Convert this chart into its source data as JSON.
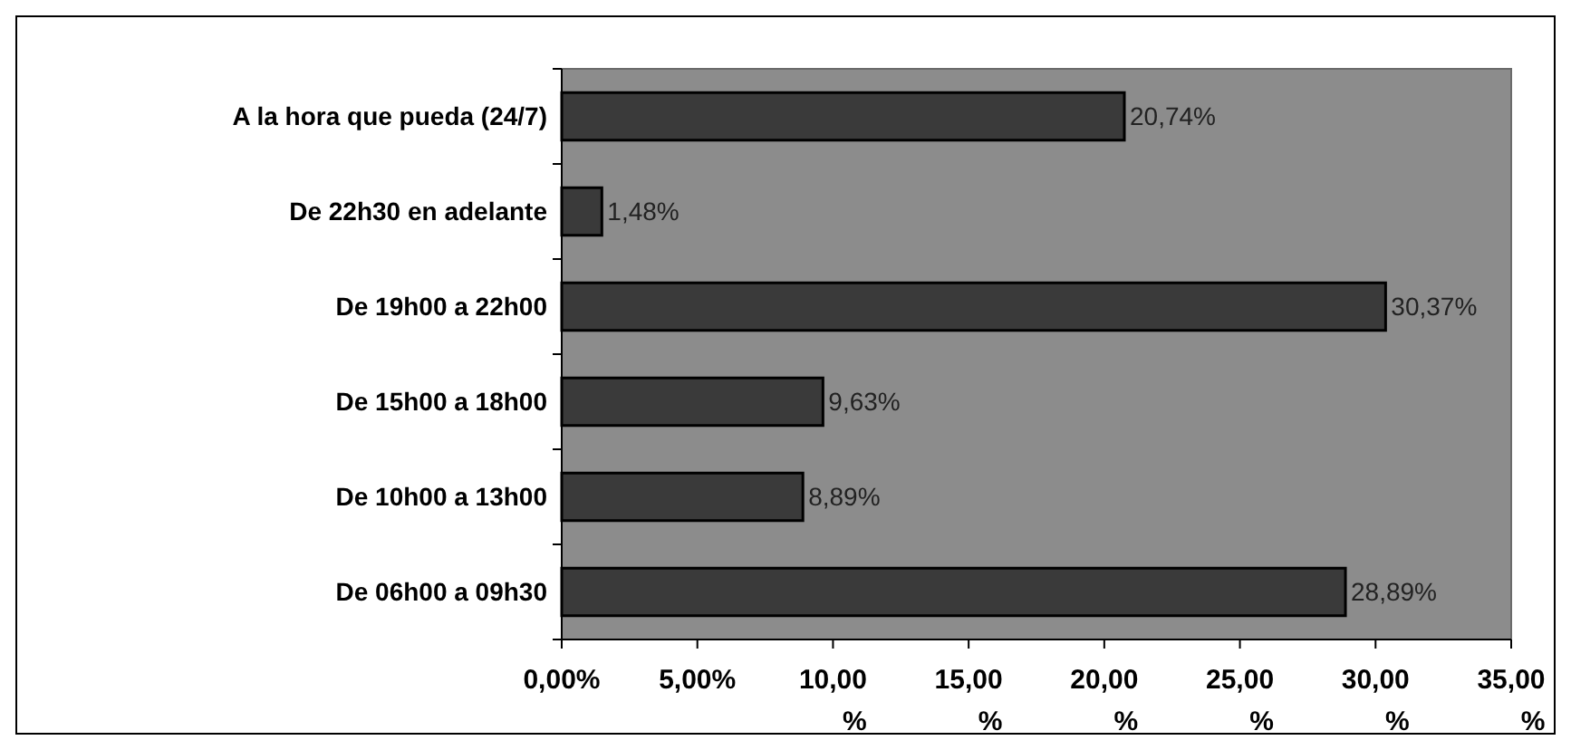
{
  "chart_data": {
    "type": "bar",
    "orientation": "horizontal",
    "categories": [
      "A la hora que pueda (24/7)",
      "De 22h30 en adelante",
      "De 19h00 a 22h00",
      "De 15h00 a 18h00",
      "De 10h00 a 13h00",
      "De 06h00 a 09h30"
    ],
    "values": [
      20.74,
      1.48,
      30.37,
      9.63,
      8.89,
      28.89
    ],
    "value_labels": [
      "20,74%",
      "1,48%",
      "30,37%",
      "9,63%",
      "8,89%",
      "28,89%"
    ],
    "color": "#3a3a3a",
    "xlim": [
      0,
      35
    ],
    "xticks": [
      {
        "value": 0,
        "label": "0,00%"
      },
      {
        "value": 5,
        "label": "5,00%"
      },
      {
        "value": 10,
        "label": "10,00%"
      },
      {
        "value": 15,
        "label": "15,00%"
      },
      {
        "value": 20,
        "label": "20,00%"
      },
      {
        "value": 25,
        "label": "25,00%"
      },
      {
        "value": 30,
        "label": "30,00%"
      },
      {
        "value": 35,
        "label": "35,00%"
      }
    ],
    "grid": false
  }
}
